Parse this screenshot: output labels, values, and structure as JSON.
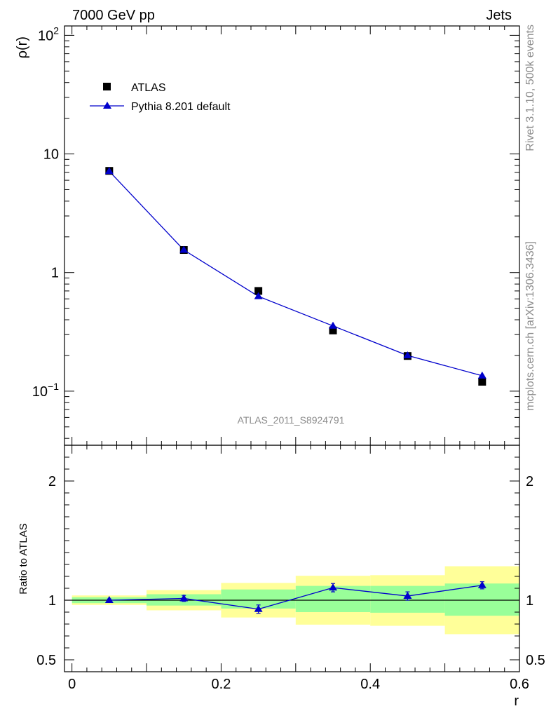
{
  "header": {
    "left": "7000 GeV pp",
    "right": "Jets"
  },
  "side_text": {
    "top": "Rivet 3.1.10,  500k events",
    "bottom": "mcplots.cern.ch [arXiv:1306.3436]"
  },
  "analysis_label": "ATLAS_2011_S8924791",
  "chart_data": [
    {
      "type": "scatter",
      "panel": "main",
      "ylabel": "ρ(r)",
      "xlabel": "",
      "yscale": "log",
      "xlim": [
        -0.01,
        0.6
      ],
      "ylim": [
        0.035,
        120
      ],
      "y_ticks": [
        {
          "value": 100,
          "label": "10",
          "sup": "2"
        },
        {
          "value": 10,
          "label": "10",
          "sup": ""
        },
        {
          "value": 1,
          "label": "1",
          "sup": ""
        },
        {
          "value": 0.1,
          "label": "10",
          "sup": "−1"
        }
      ],
      "legend_position": "top-left",
      "x": [
        0.05,
        0.15,
        0.25,
        0.35,
        0.45,
        0.55
      ],
      "series": [
        {
          "name": "ATLAS",
          "marker": "square",
          "color": "#000000",
          "values": [
            7.2,
            1.55,
            0.7,
            0.325,
            0.198,
            0.12
          ]
        },
        {
          "name": "Pythia 8.201 default",
          "marker": "triangle",
          "color": "#0000cc",
          "line": true,
          "values": [
            7.15,
            1.55,
            0.63,
            0.355,
            0.2,
            0.135
          ]
        }
      ]
    },
    {
      "type": "line",
      "panel": "ratio",
      "ylabel": "Ratio to ATLAS",
      "xlabel": "r",
      "xlim": [
        -0.01,
        0.6
      ],
      "ylim": [
        0.4,
        2.3
      ],
      "x_ticks": [
        {
          "value": 0,
          "label": "0"
        },
        {
          "value": 0.2,
          "label": "0.2"
        },
        {
          "value": 0.4,
          "label": "0.4"
        },
        {
          "value": 0.6,
          "label": "0.6"
        }
      ],
      "y_ticks": [
        {
          "value": 2,
          "label": "2"
        },
        {
          "value": 1,
          "label": "1"
        },
        {
          "value": 0.5,
          "label": "0.5"
        }
      ],
      "bins": [
        [
          0.0,
          0.1
        ],
        [
          0.1,
          0.2
        ],
        [
          0.2,
          0.3
        ],
        [
          0.3,
          0.4
        ],
        [
          0.4,
          0.5
        ],
        [
          0.5,
          0.6
        ]
      ],
      "band_inner": [
        [
          0.975,
          1.025
        ],
        [
          0.955,
          1.05
        ],
        [
          0.93,
          1.09
        ],
        [
          0.9,
          1.12
        ],
        [
          0.895,
          1.12
        ],
        [
          0.87,
          1.14
        ]
      ],
      "band_outer": [
        [
          0.96,
          1.04
        ],
        [
          0.915,
          1.085
        ],
        [
          0.855,
          1.145
        ],
        [
          0.795,
          1.205
        ],
        [
          0.785,
          1.21
        ],
        [
          0.715,
          1.285
        ]
      ],
      "x": [
        0.05,
        0.15,
        0.25,
        0.35,
        0.45,
        0.55
      ],
      "series": [
        {
          "name": "Pythia 8.201 default",
          "color": "#0000cc",
          "values": [
            1.0,
            1.015,
            0.925,
            1.105,
            1.035,
            1.125
          ],
          "errors": [
            0.01,
            0.025,
            0.035,
            0.035,
            0.035,
            0.03
          ]
        }
      ],
      "band_colors": {
        "outer": "#ffff99",
        "inner": "#99ff99"
      },
      "reference_line": 1.0
    }
  ]
}
